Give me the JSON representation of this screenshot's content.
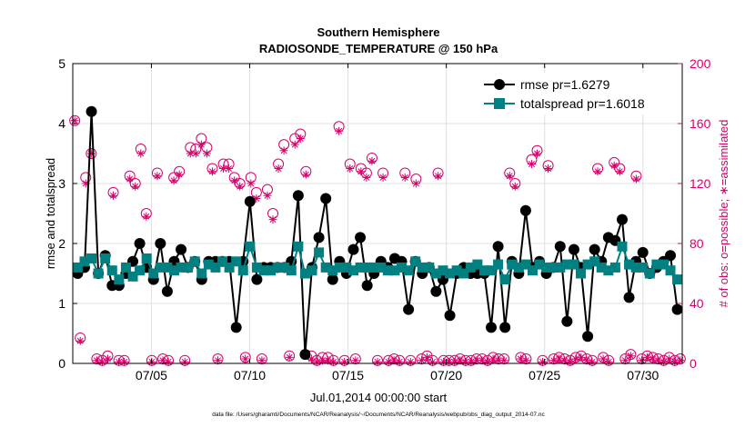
{
  "chart_data": {
    "type": "line",
    "title": "Southern Hemisphere",
    "subtitle": "RADIOSONDE_TEMPERATURE @ 150 hPa",
    "xlabel": "Jul.01,2014 00:00:00 start",
    "ylabel_left": "rmse and totalspread",
    "ylabel_right": "# of obs: o=possible; ∗=assimilated",
    "footnote": "data file: /Users/gharamti/Documents/NCAR/Reanalysis/~/Documents/NCAR/Reanalysis/webpub/obs_diag_output_2014-07.nc",
    "xlim": [
      1.0,
      32.0
    ],
    "ylim_left": [
      0,
      5
    ],
    "ylim_right": [
      0,
      200
    ],
    "left_ticks": [
      0,
      1,
      2,
      3,
      4,
      5
    ],
    "right_ticks": [
      0,
      40,
      80,
      120,
      160,
      200
    ],
    "x_ticks": [
      {
        "x": 5,
        "label": "07/05"
      },
      {
        "x": 10,
        "label": "07/10"
      },
      {
        "x": 15,
        "label": "07/15"
      },
      {
        "x": 20,
        "label": "07/20"
      },
      {
        "x": 25,
        "label": "07/25"
      },
      {
        "x": 30,
        "label": "07/30"
      }
    ],
    "colors": {
      "rmse": "#000000",
      "totalspread": "#008080",
      "obs": "#d6006b",
      "axis": "#000000",
      "grid": "#e0e0e0"
    },
    "series": [
      {
        "name": "rmse pr=1.6279",
        "axis": "left",
        "values": [
          1.5,
          1.6,
          4.2,
          1.5,
          1.8,
          1.3,
          1.3,
          1.5,
          1.7,
          2.0,
          1.6,
          1.4,
          2.0,
          1.2,
          1.7,
          1.9,
          1.6,
          1.7,
          1.4,
          1.7,
          1.7,
          1.7,
          1.7,
          0.6,
          1.7,
          2.7,
          1.4,
          1.6,
          1.6,
          1.6,
          1.6,
          1.7,
          2.8,
          0.15,
          1.6,
          2.1,
          2.75,
          1.4,
          1.7,
          1.5,
          1.9,
          2.1,
          1.3,
          1.5,
          1.7,
          1.6,
          1.75,
          1.7,
          0.9,
          1.7,
          1.5,
          1.6,
          1.2,
          1.4,
          0.8,
          1.5,
          1.6,
          1.5,
          1.5,
          1.5,
          0.6,
          1.95,
          0.6,
          1.7,
          1.5,
          2.55,
          1.6,
          1.7,
          1.5,
          1.6,
          1.95,
          0.7,
          1.9,
          1.6,
          0.45,
          1.9,
          1.7,
          2.1,
          2.05,
          2.4,
          1.1,
          1.7,
          1.85,
          1.5,
          1.6,
          1.7,
          1.8,
          0.9
        ]
      },
      {
        "name": "totalspread pr=1.6018",
        "axis": "left",
        "values": [
          1.6,
          1.7,
          1.75,
          1.5,
          1.75,
          1.55,
          1.4,
          1.6,
          1.45,
          1.55,
          1.75,
          1.5,
          1.6,
          1.6,
          1.55,
          1.6,
          1.6,
          1.7,
          1.5,
          1.65,
          1.6,
          1.7,
          1.6,
          1.7,
          1.55,
          1.95,
          1.6,
          1.55,
          1.55,
          1.6,
          1.6,
          1.55,
          1.95,
          1.5,
          1.55,
          1.85,
          1.6,
          1.55,
          1.6,
          1.6,
          1.55,
          1.6,
          1.6,
          1.6,
          1.6,
          1.55,
          1.55,
          1.6,
          1.55,
          1.7,
          1.6,
          1.6,
          1.5,
          1.55,
          1.5,
          1.55,
          1.5,
          1.6,
          1.65,
          1.55,
          1.55,
          1.65,
          1.4,
          1.65,
          1.6,
          1.65,
          1.55,
          1.65,
          1.6,
          1.6,
          1.6,
          1.65,
          1.65,
          1.5,
          1.65,
          1.7,
          1.6,
          1.55,
          1.6,
          1.95,
          1.65,
          1.6,
          1.6,
          1.5,
          1.65,
          1.65,
          1.55,
          1.4
        ]
      },
      {
        "name": "obs possible",
        "axis": "right",
        "values": [
          162,
          17,
          124,
          140,
          3,
          2,
          5,
          114,
          2,
          2,
          125,
          120,
          143,
          100,
          2,
          127,
          3,
          2,
          124,
          128,
          2,
          144,
          143,
          150,
          144,
          130,
          3,
          133,
          133,
          124,
          120,
          4,
          124,
          114,
          3,
          116,
          100,
          133,
          146,
          5,
          150,
          153,
          128,
          5,
          2,
          4,
          4,
          2,
          158,
          2,
          133,
          3,
          130,
          127,
          137,
          2,
          127,
          2,
          3,
          2,
          127,
          2,
          123,
          3,
          5,
          2,
          127,
          2,
          2,
          2,
          3,
          2,
          2,
          3,
          3,
          2,
          4,
          3,
          3,
          127,
          120,
          4,
          3,
          136,
          142,
          2,
          132,
          3,
          4,
          3,
          2,
          4,
          5,
          3,
          2,
          130,
          4,
          2,
          134,
          130,
          3,
          6,
          125,
          3,
          5,
          4,
          3,
          2,
          4,
          2,
          3
        ],
        "assimilated": [
          162,
          15,
          120,
          140,
          2,
          1,
          3,
          112,
          1,
          1,
          123,
          118,
          140,
          98,
          1,
          125,
          2,
          1,
          122,
          126,
          1,
          140,
          140,
          146,
          140,
          128,
          2,
          130,
          130,
          122,
          118,
          3,
          120,
          110,
          2,
          112,
          96,
          130,
          142,
          4,
          146,
          150,
          126,
          3,
          1,
          2,
          2,
          1,
          155,
          1,
          130,
          2,
          128,
          124,
          135,
          1,
          124,
          1,
          2,
          1,
          124,
          1,
          120,
          2,
          4,
          1,
          125,
          1,
          1,
          1,
          2,
          1,
          1,
          2,
          2,
          1,
          3,
          2,
          2,
          125,
          118,
          3,
          2,
          133,
          140,
          1,
          130,
          2,
          3,
          2,
          1,
          3,
          4,
          2,
          1,
          128,
          3,
          1,
          132,
          128,
          2,
          5,
          123,
          2,
          4,
          3,
          2,
          1,
          3,
          1,
          2
        ]
      }
    ]
  }
}
